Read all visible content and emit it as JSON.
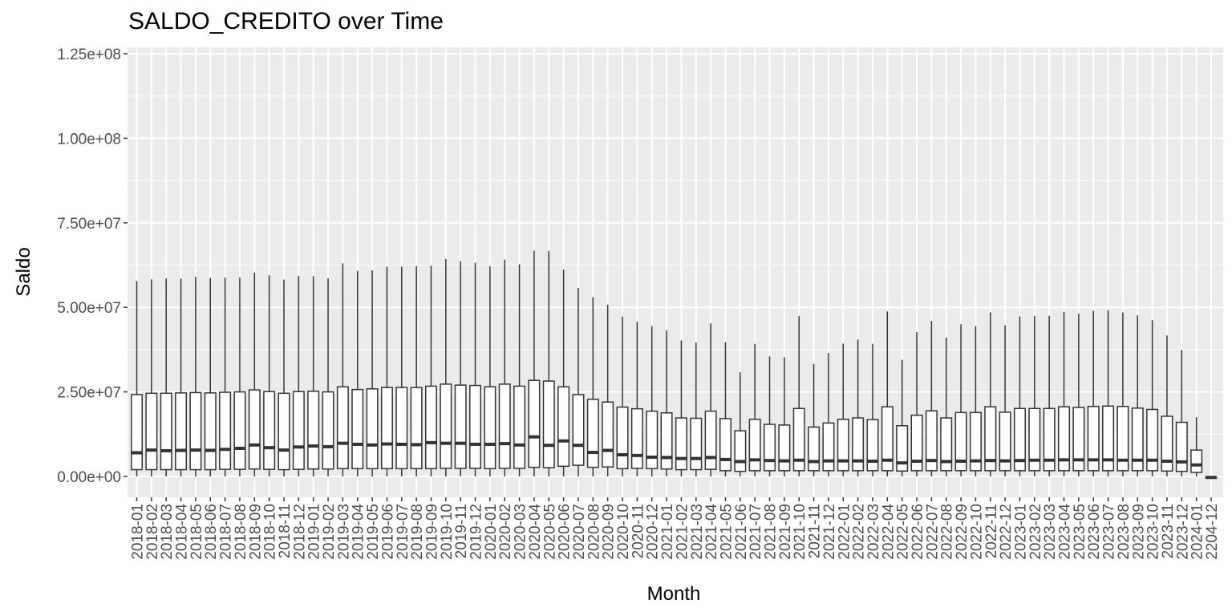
{
  "chart_data": {
    "type": "box",
    "title": "SALDO_CREDITO over Time",
    "xlabel": "Month",
    "ylabel": "Saldo",
    "ylim": [
      -4000000,
      126000000
    ],
    "yticks": [
      0,
      25000000,
      50000000,
      75000000,
      100000000,
      125000000
    ],
    "ytick_labels": [
      "0.00e+00",
      "2.50e+07",
      "5.00e+07",
      "7.50e+07",
      "1.00e+08",
      "1.25e+08"
    ],
    "grid": true,
    "colors": {
      "panel": "#ebebeb",
      "grid": "#ffffff",
      "box_fill": "#ffffff",
      "box_line": "#333333",
      "text": "#4d4d4d"
    },
    "categories": [
      "2018-01",
      "2018-02",
      "2018-03",
      "2018-04",
      "2018-05",
      "2018-06",
      "2018-07",
      "2018-08",
      "2018-09",
      "2018-10",
      "2018-11",
      "2018-12",
      "2019-01",
      "2019-02",
      "2019-03",
      "2019-04",
      "2019-05",
      "2019-06",
      "2019-07",
      "2019-08",
      "2019-09",
      "2019-10",
      "2019-11",
      "2019-12",
      "2020-01",
      "2020-02",
      "2020-03",
      "2020-04",
      "2020-05",
      "2020-06",
      "2020-07",
      "2020-08",
      "2020-09",
      "2020-10",
      "2020-11",
      "2020-12",
      "2021-01",
      "2021-02",
      "2021-03",
      "2021-04",
      "2021-05",
      "2021-06",
      "2021-07",
      "2021-08",
      "2021-09",
      "2021-10",
      "2021-11",
      "2021-12",
      "2022-01",
      "2022-02",
      "2022-03",
      "2022-04",
      "2022-05",
      "2022-06",
      "2022-07",
      "2022-08",
      "2022-09",
      "2022-10",
      "2022-11",
      "2022-12",
      "2023-01",
      "2023-02",
      "2023-03",
      "2023-04",
      "2023-05",
      "2023-06",
      "2023-07",
      "2023-08",
      "2023-09",
      "2023-10",
      "2023-11",
      "2023-12",
      "2024-01",
      "2204-12"
    ],
    "boxes": [
      {
        "low": 0,
        "q1": 2000000,
        "median": 7000000,
        "q3": 24200000,
        "high": 57800000
      },
      {
        "low": 0,
        "q1": 2000000,
        "median": 7800000,
        "q3": 24600000,
        "high": 58300000
      },
      {
        "low": 0,
        "q1": 2000000,
        "median": 7600000,
        "q3": 24600000,
        "high": 58600000
      },
      {
        "low": 0,
        "q1": 2000000,
        "median": 7700000,
        "q3": 24700000,
        "high": 58500000
      },
      {
        "low": 0,
        "q1": 2000000,
        "median": 7800000,
        "q3": 24800000,
        "high": 59000000
      },
      {
        "low": 0,
        "q1": 2000000,
        "median": 7700000,
        "q3": 24700000,
        "high": 58700000
      },
      {
        "low": 0,
        "q1": 2100000,
        "median": 8000000,
        "q3": 24900000,
        "high": 58800000
      },
      {
        "low": 0,
        "q1": 2100000,
        "median": 8300000,
        "q3": 25000000,
        "high": 58800000
      },
      {
        "low": 0,
        "q1": 2200000,
        "median": 9300000,
        "q3": 25600000,
        "high": 60300000
      },
      {
        "low": 0,
        "q1": 2100000,
        "median": 8500000,
        "q3": 25100000,
        "high": 59500000
      },
      {
        "low": 0,
        "q1": 2000000,
        "median": 7800000,
        "q3": 24600000,
        "high": 58200000
      },
      {
        "low": 0,
        "q1": 2100000,
        "median": 8700000,
        "q3": 25100000,
        "high": 59300000
      },
      {
        "low": 0,
        "q1": 2200000,
        "median": 9000000,
        "q3": 25200000,
        "high": 59200000
      },
      {
        "low": 0,
        "q1": 2200000,
        "median": 8800000,
        "q3": 25000000,
        "high": 58600000
      },
      {
        "low": 0,
        "q1": 2300000,
        "median": 9800000,
        "q3": 26500000,
        "high": 63000000
      },
      {
        "low": 0,
        "q1": 2300000,
        "median": 9500000,
        "q3": 25700000,
        "high": 60800000
      },
      {
        "low": 0,
        "q1": 2300000,
        "median": 9300000,
        "q3": 25900000,
        "high": 61000000
      },
      {
        "low": 0,
        "q1": 2300000,
        "median": 9600000,
        "q3": 26300000,
        "high": 62000000
      },
      {
        "low": 0,
        "q1": 2300000,
        "median": 9500000,
        "q3": 26300000,
        "high": 62000000
      },
      {
        "low": 0,
        "q1": 2300000,
        "median": 9400000,
        "q3": 26300000,
        "high": 62200000
      },
      {
        "low": 0,
        "q1": 2300000,
        "median": 10000000,
        "q3": 26700000,
        "high": 62300000
      },
      {
        "low": 0,
        "q1": 2400000,
        "median": 9800000,
        "q3": 27300000,
        "high": 64300000
      },
      {
        "low": 0,
        "q1": 2400000,
        "median": 9800000,
        "q3": 27000000,
        "high": 63700000
      },
      {
        "low": 0,
        "q1": 2400000,
        "median": 9500000,
        "q3": 26900000,
        "high": 63200000
      },
      {
        "low": 0,
        "q1": 2300000,
        "median": 9500000,
        "q3": 26500000,
        "high": 62100000
      },
      {
        "low": 0,
        "q1": 2400000,
        "median": 9700000,
        "q3": 27300000,
        "high": 64100000
      },
      {
        "low": 0,
        "q1": 2400000,
        "median": 9300000,
        "q3": 26700000,
        "high": 62700000
      },
      {
        "low": 0,
        "q1": 2700000,
        "median": 11700000,
        "q3": 28400000,
        "high": 66700000
      },
      {
        "low": 0,
        "q1": 2600000,
        "median": 9200000,
        "q3": 28200000,
        "high": 66700000
      },
      {
        "low": 0,
        "q1": 3000000,
        "median": 10500000,
        "q3": 26500000,
        "high": 61200000
      },
      {
        "low": 0,
        "q1": 3300000,
        "median": 9200000,
        "q3": 24200000,
        "high": 55700000
      },
      {
        "low": 0,
        "q1": 2700000,
        "median": 7100000,
        "q3": 22800000,
        "high": 53000000
      },
      {
        "low": 0,
        "q1": 2800000,
        "median": 7700000,
        "q3": 22000000,
        "high": 50800000
      },
      {
        "low": 0,
        "q1": 2300000,
        "median": 6400000,
        "q3": 20500000,
        "high": 47300000
      },
      {
        "low": 0,
        "q1": 2400000,
        "median": 6200000,
        "q3": 20000000,
        "high": 45700000
      },
      {
        "low": 0,
        "q1": 2300000,
        "median": 5700000,
        "q3": 19300000,
        "high": 44500000
      },
      {
        "low": 0,
        "q1": 2200000,
        "median": 5600000,
        "q3": 18800000,
        "high": 43200000
      },
      {
        "low": 0,
        "q1": 2000000,
        "median": 5300000,
        "q3": 17300000,
        "high": 40200000
      },
      {
        "low": 0,
        "q1": 2000000,
        "median": 5300000,
        "q3": 17200000,
        "high": 39600000
      },
      {
        "low": 0,
        "q1": 2100000,
        "median": 5600000,
        "q3": 19300000,
        "high": 45300000
      },
      {
        "low": 0,
        "q1": 1700000,
        "median": 5000000,
        "q3": 17100000,
        "high": 39700000
      },
      {
        "low": 0,
        "q1": 1500000,
        "median": 4400000,
        "q3": 13500000,
        "high": 30800000
      },
      {
        "low": 0,
        "q1": 1700000,
        "median": 4900000,
        "q3": 16900000,
        "high": 39200000
      },
      {
        "low": 0,
        "q1": 1700000,
        "median": 4700000,
        "q3": 15400000,
        "high": 35500000
      },
      {
        "low": 0,
        "q1": 1700000,
        "median": 4600000,
        "q3": 15200000,
        "high": 35300000
      },
      {
        "low": 0,
        "q1": 1700000,
        "median": 4800000,
        "q3": 20100000,
        "high": 47400000
      },
      {
        "low": 0,
        "q1": 1700000,
        "median": 4400000,
        "q3": 14600000,
        "high": 33300000
      },
      {
        "low": 0,
        "q1": 1700000,
        "median": 4600000,
        "q3": 15800000,
        "high": 36500000
      },
      {
        "low": 0,
        "q1": 1700000,
        "median": 4600000,
        "q3": 16900000,
        "high": 39300000
      },
      {
        "low": 0,
        "q1": 1700000,
        "median": 4600000,
        "q3": 17300000,
        "high": 40500000
      },
      {
        "low": 0,
        "q1": 1700000,
        "median": 4500000,
        "q3": 16800000,
        "high": 39200000
      },
      {
        "low": 0,
        "q1": 1700000,
        "median": 4800000,
        "q3": 20600000,
        "high": 48800000
      },
      {
        "low": 0,
        "q1": 1600000,
        "median": 4000000,
        "q3": 15000000,
        "high": 34500000
      },
      {
        "low": 0,
        "q1": 1700000,
        "median": 4500000,
        "q3": 18100000,
        "high": 42700000
      },
      {
        "low": 0,
        "q1": 1700000,
        "median": 4700000,
        "q3": 19400000,
        "high": 46000000
      },
      {
        "low": 0,
        "q1": 1700000,
        "median": 4400000,
        "q3": 17300000,
        "high": 41000000
      },
      {
        "low": 0,
        "q1": 1700000,
        "median": 4500000,
        "q3": 18900000,
        "high": 45000000
      },
      {
        "low": 0,
        "q1": 1700000,
        "median": 4600000,
        "q3": 18900000,
        "high": 44500000
      },
      {
        "low": 0,
        "q1": 1700000,
        "median": 4700000,
        "q3": 20600000,
        "high": 48500000
      },
      {
        "low": 0,
        "q1": 1700000,
        "median": 4600000,
        "q3": 19000000,
        "high": 44700000
      },
      {
        "low": 0,
        "q1": 1700000,
        "median": 4700000,
        "q3": 20100000,
        "high": 47300000
      },
      {
        "low": 0,
        "q1": 1700000,
        "median": 4800000,
        "q3": 20100000,
        "high": 47500000
      },
      {
        "low": 0,
        "q1": 1700000,
        "median": 4800000,
        "q3": 20100000,
        "high": 47500000
      },
      {
        "low": 0,
        "q1": 1700000,
        "median": 4900000,
        "q3": 20600000,
        "high": 48700000
      },
      {
        "low": 0,
        "q1": 1700000,
        "median": 4900000,
        "q3": 20400000,
        "high": 48100000
      },
      {
        "low": 0,
        "q1": 1700000,
        "median": 4900000,
        "q3": 20700000,
        "high": 49000000
      },
      {
        "low": 0,
        "q1": 1700000,
        "median": 4900000,
        "q3": 20800000,
        "high": 49200000
      },
      {
        "low": 0,
        "q1": 1700000,
        "median": 4800000,
        "q3": 20700000,
        "high": 48500000
      },
      {
        "low": 0,
        "q1": 1700000,
        "median": 4800000,
        "q3": 20200000,
        "high": 47600000
      },
      {
        "low": 0,
        "q1": 1700000,
        "median": 4800000,
        "q3": 19800000,
        "high": 46200000
      },
      {
        "low": 0,
        "q1": 1600000,
        "median": 4500000,
        "q3": 17800000,
        "high": 41700000
      },
      {
        "low": 0,
        "q1": 1500000,
        "median": 4300000,
        "q3": 16000000,
        "high": 37400000
      },
      {
        "low": 0,
        "q1": 1200000,
        "median": 3400000,
        "q3": 7800000,
        "high": 17500000
      },
      {
        "low": -500000,
        "q1": -300000,
        "median": -300000,
        "q3": -300000,
        "high": -300000
      }
    ]
  }
}
